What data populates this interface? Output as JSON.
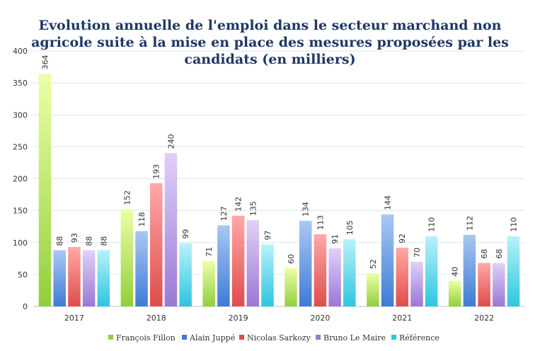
{
  "chart_data": {
    "type": "bar",
    "title_lines": [
      "Evolution annuelle de l'emploi dans le secteur marchand non",
      "agricole suite à la mise en place des mesures proposées par les",
      "candidats (en milliers)"
    ],
    "categories": [
      "2017",
      "2018",
      "2019",
      "2020",
      "2021",
      "2022"
    ],
    "series": [
      {
        "name": "François Fillon",
        "values": [
          364,
          152,
          71,
          60,
          52,
          40
        ],
        "color_top": "#ECFFA8",
        "color_bottom": "#92CF3C"
      },
      {
        "name": "Alain Juppé",
        "values": [
          88,
          118,
          127,
          134,
          144,
          112
        ],
        "color_top": "#A9C8F2",
        "color_bottom": "#3E7BD6"
      },
      {
        "name": "Nicolas Sarkozy",
        "values": [
          93,
          193,
          142,
          113,
          92,
          68
        ],
        "color_top": "#FFA8A8",
        "color_bottom": "#E04C4C"
      },
      {
        "name": "Bruno Le Maire",
        "values": [
          88,
          240,
          135,
          91,
          70,
          68
        ],
        "color_top": "#E0D0F8",
        "color_bottom": "#9A78D6"
      },
      {
        "name": "Référence",
        "values": [
          88,
          99,
          97,
          105,
          110,
          110
        ],
        "color_top": "#B8F2FA",
        "color_bottom": "#2CC6E0"
      }
    ],
    "ylim": [
      0,
      400
    ],
    "yticks": [
      0,
      50,
      100,
      150,
      200,
      250,
      300,
      350,
      400
    ],
    "grid": true,
    "legend_position": "bottom"
  }
}
